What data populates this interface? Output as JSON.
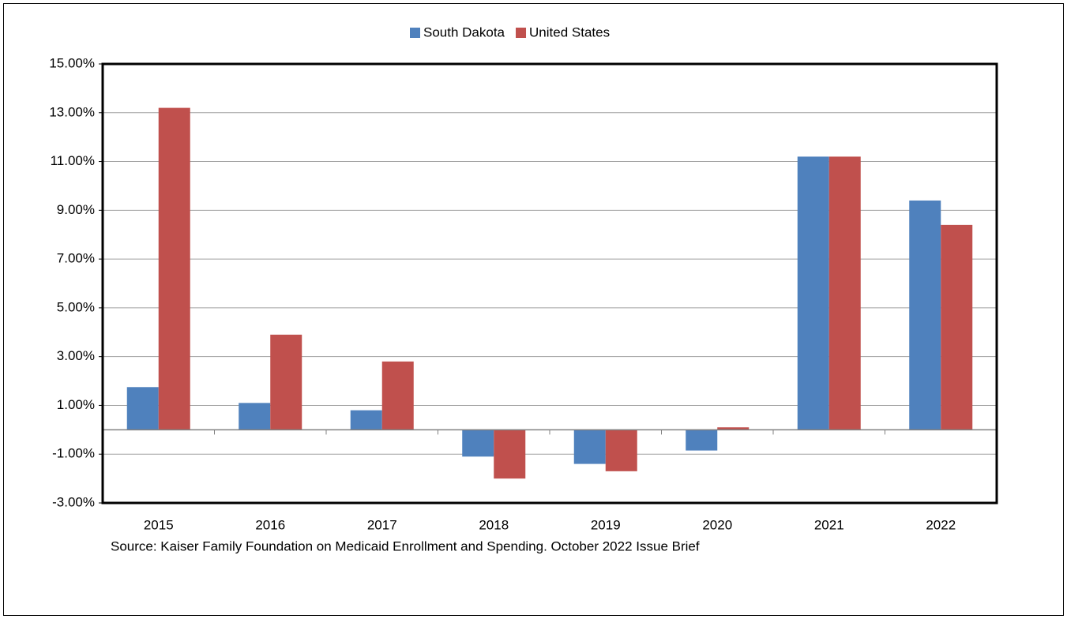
{
  "chart_data": {
    "type": "bar",
    "categories": [
      "2015",
      "2016",
      "2017",
      "2018",
      "2019",
      "2020",
      "2021",
      "2022"
    ],
    "series": [
      {
        "name": "South Dakota",
        "color": "#4f81bd",
        "values": [
          1.75,
          1.1,
          0.8,
          -1.1,
          -1.4,
          -0.85,
          11.2,
          9.4
        ]
      },
      {
        "name": "United States",
        "color": "#c0504d",
        "values": [
          13.2,
          3.9,
          2.8,
          -2.0,
          -1.7,
          0.1,
          11.2,
          8.4
        ]
      }
    ],
    "ylim": [
      -3,
      15
    ],
    "yticks": [
      {
        "value": -3,
        "label": "-3.00%"
      },
      {
        "value": -1,
        "label": "-1.00%"
      },
      {
        "value": 1,
        "label": "1.00%"
      },
      {
        "value": 3,
        "label": "3.00%"
      },
      {
        "value": 5,
        "label": "5.00%"
      },
      {
        "value": 7,
        "label": "7.00%"
      },
      {
        "value": 9,
        "label": "9.00%"
      },
      {
        "value": 11,
        "label": "11.00%"
      },
      {
        "value": 13,
        "label": "13.00%"
      },
      {
        "value": 15,
        "label": "15.00%"
      }
    ],
    "grid": true,
    "legend": "top",
    "source": "Source: Kaiser Family Foundation on Medicaid Enrollment and Spending. October 2022 Issue Brief"
  }
}
